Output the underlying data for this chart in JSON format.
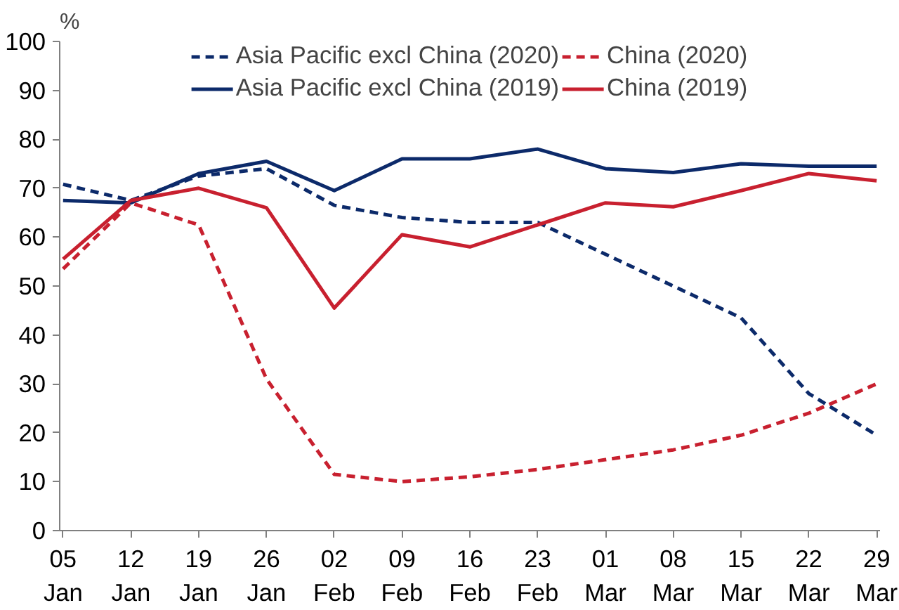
{
  "chart_data": {
    "type": "line",
    "ylabel": "%",
    "categories": [
      "05 Jan",
      "12 Jan",
      "19 Jan",
      "26 Jan",
      "02 Feb",
      "09 Feb",
      "16 Feb",
      "23 Feb",
      "01 Mar",
      "08 Mar",
      "15 Mar",
      "22 Mar",
      "29 Mar"
    ],
    "series": [
      {
        "name": "Asia Pacific excl China (2020)",
        "color": "#0c2a6a",
        "line_style": "dashed",
        "values": [
          70.8,
          67.5,
          72.5,
          74,
          66.5,
          64,
          63,
          63,
          56.5,
          50,
          43.5,
          28,
          19.5
        ]
      },
      {
        "name": "Asia Pacific excl China (2019)",
        "color": "#0c2a6a",
        "line_style": "solid",
        "values": [
          67.5,
          67,
          73,
          75.5,
          69.5,
          76,
          76,
          78,
          74,
          73.2,
          75,
          74.5,
          74.5
        ]
      },
      {
        "name": "China (2020)",
        "color": "#c8202f",
        "line_style": "dashed",
        "values": [
          53.5,
          67,
          62.5,
          31,
          11.5,
          10,
          11,
          12.5,
          14.5,
          16.5,
          19.5,
          24,
          30
        ]
      },
      {
        "name": "China (2019)",
        "color": "#c8202f",
        "line_style": "solid",
        "values": [
          55.5,
          67.5,
          70,
          66,
          45.5,
          60.5,
          58,
          62.5,
          67,
          66.2,
          69.5,
          73,
          71.5
        ]
      }
    ],
    "ylim": [
      0,
      100
    ],
    "yticks": [
      0,
      10,
      20,
      30,
      40,
      50,
      60,
      70,
      80,
      90,
      100
    ],
    "grid": false,
    "legend": "top",
    "marker": "none"
  }
}
